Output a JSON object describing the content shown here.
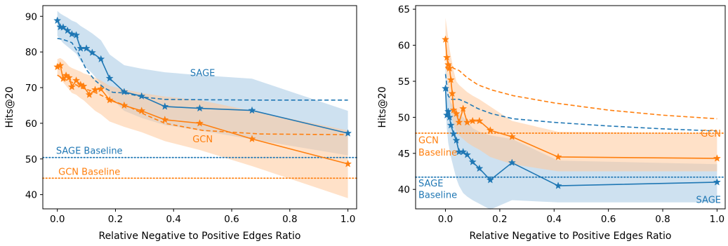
{
  "colors": {
    "sage": "#1f77b4",
    "gcn": "#ff7f0e",
    "sage_band": "#a6c8e4",
    "gcn_band": "#ffc99a"
  },
  "chart_data": [
    {
      "type": "line",
      "xlabel": "Relative Negative to Positive Edges Ratio",
      "ylabel": "Hits@20",
      "xlim": [
        -0.05,
        1.03
      ],
      "ylim": [
        36,
        93
      ],
      "xticks": [
        0.0,
        0.2,
        0.4,
        0.6,
        0.8,
        1.0
      ],
      "xtick_labels": [
        "0.0",
        "0.2",
        "0.4",
        "0.6",
        "0.8",
        "1.0"
      ],
      "yticks": [
        40,
        50,
        60,
        70,
        80,
        90
      ],
      "ytick_labels": [
        "40",
        "50",
        "60",
        "70",
        "80",
        "90"
      ],
      "grid": false,
      "annotations": [
        {
          "text": "SAGE",
          "x": 0.5,
          "y": 74,
          "series": "SAGE"
        },
        {
          "text": "GCN",
          "x": 0.5,
          "y": 55.5,
          "series": "GCN"
        },
        {
          "text": "SAGE Baseline",
          "x": 0.11,
          "y": 52.2,
          "series": "SAGE"
        },
        {
          "text": "GCN Baseline",
          "x": 0.11,
          "y": 46.3,
          "series": "GCN"
        }
      ],
      "baselines": [
        {
          "label": "SAGE Baseline",
          "y": 50.4,
          "series": "SAGE"
        },
        {
          "label": "GCN Baseline",
          "y": 44.6,
          "series": "GCN"
        }
      ],
      "series": [
        {
          "name": "SAGE",
          "x": [
            0.0,
            0.01,
            0.02,
            0.035,
            0.05,
            0.065,
            0.08,
            0.1,
            0.12,
            0.15,
            0.18,
            0.23,
            0.29,
            0.37,
            0.49,
            0.67,
            1.0
          ],
          "values": [
            88.8,
            87.0,
            86.9,
            86.0,
            85.0,
            84.7,
            81.0,
            81.0,
            79.8,
            78.0,
            72.6,
            68.8,
            67.6,
            64.7,
            64.2,
            63.6,
            57.2
          ],
          "band_lower": [
            84.5,
            83.5,
            82.5,
            81.5,
            80.5,
            79.5,
            77.5,
            75.5,
            74.0,
            71.0,
            67.5,
            63.5,
            61.5,
            59.5,
            58.0,
            55.5,
            51.0
          ],
          "band_upper": [
            91.5,
            90.8,
            90.3,
            89.6,
            88.8,
            88.3,
            87.3,
            86.3,
            85.2,
            83.3,
            79.3,
            76.3,
            75.3,
            74.3,
            73.5,
            72.5,
            63.5
          ],
          "dashed_x": [
            0.0,
            0.02,
            0.05,
            0.07,
            0.1,
            0.13,
            0.16,
            0.19,
            0.23,
            0.3,
            0.37,
            0.5,
            0.7,
            1.0
          ],
          "dashed_values": [
            83.8,
            83.5,
            82.6,
            80.0,
            75.0,
            72.0,
            70.0,
            68.7,
            68.5,
            67.3,
            66.7,
            66.6,
            66.5,
            66.5
          ]
        },
        {
          "name": "GCN",
          "x": [
            0.0,
            0.01,
            0.02,
            0.03,
            0.04,
            0.05,
            0.065,
            0.08,
            0.09,
            0.11,
            0.13,
            0.15,
            0.18,
            0.23,
            0.29,
            0.37,
            0.49,
            0.67,
            1.0
          ],
          "values": [
            75.8,
            76.2,
            72.5,
            73.4,
            72.8,
            70.2,
            72.0,
            70.8,
            70.4,
            68.0,
            69.4,
            69.6,
            66.5,
            65.0,
            63.5,
            61.0,
            60.0,
            55.6,
            48.6
          ],
          "band_lower": [
            73.5,
            73.0,
            71.5,
            70.5,
            69.5,
            68.5,
            68.0,
            67.0,
            66.5,
            65.0,
            63.5,
            62.5,
            60.5,
            59.0,
            57.5,
            55.0,
            52.5,
            48.0,
            39.0
          ],
          "band_upper": [
            78.0,
            78.3,
            77.8,
            77.0,
            76.0,
            75.5,
            75.0,
            74.5,
            74.0,
            73.5,
            72.8,
            72.0,
            70.5,
            69.5,
            68.5,
            67.5,
            66.5,
            63.5,
            58.0
          ],
          "dashed_x": [
            0.0,
            0.02,
            0.05,
            0.08,
            0.12,
            0.16,
            0.2,
            0.25,
            0.3,
            0.37,
            0.5,
            0.7,
            1.0
          ],
          "dashed_values": [
            73.5,
            72.5,
            71.5,
            70.0,
            69.0,
            67.5,
            66.0,
            64.5,
            62.5,
            60.0,
            58.0,
            57.0,
            56.8
          ]
        }
      ]
    },
    {
      "type": "line",
      "xlabel": "Relative Negative to Positive Edges Ratio",
      "ylabel": "Hits@20",
      "xlim": [
        -0.11,
        1.03
      ],
      "ylim": [
        37.3,
        65.5
      ],
      "xticks": [
        0.0,
        0.2,
        0.4,
        0.6,
        0.8,
        1.0
      ],
      "xtick_labels": [
        "0.0",
        "0.2",
        "0.4",
        "0.6",
        "0.8",
        "1.0"
      ],
      "yticks": [
        40,
        45,
        50,
        55,
        60,
        65
      ],
      "ytick_labels": [
        "40",
        "45",
        "50",
        "55",
        "60",
        "65"
      ],
      "grid": false,
      "annotations": [
        {
          "text": "GCN",
          "x": 0.97,
          "y": 47.7,
          "series": "GCN"
        },
        {
          "text": "GCN",
          "x": -0.1,
          "y": 46.8,
          "series": "GCN"
        },
        {
          "text": "Baseline",
          "x": -0.1,
          "y": 45.1,
          "series": "GCN"
        },
        {
          "text": "SAGE",
          "x": -0.1,
          "y": 40.8,
          "series": "SAGE"
        },
        {
          "text": "Baseline",
          "x": -0.1,
          "y": 39.2,
          "series": "SAGE"
        },
        {
          "text": "SAGE",
          "x": 0.97,
          "y": 38.5,
          "series": "SAGE"
        }
      ],
      "baselines": [
        {
          "label": "GCN Baseline",
          "y": 47.8,
          "series": "GCN"
        },
        {
          "label": "SAGE Baseline",
          "y": 41.7,
          "series": "SAGE"
        }
      ],
      "series": [
        {
          "name": "SAGE",
          "x": [
            0.0,
            0.005,
            0.01,
            0.015,
            0.02,
            0.03,
            0.04,
            0.05,
            0.065,
            0.08,
            0.1,
            0.125,
            0.165,
            0.245,
            0.415,
            1.0
          ],
          "values": [
            54.0,
            50.3,
            50.8,
            50.0,
            48.9,
            47.7,
            46.8,
            45.2,
            45.2,
            44.8,
            43.8,
            42.9,
            41.3,
            43.7,
            40.5,
            41.0
          ],
          "band_lower": [
            51.5,
            48.5,
            46.5,
            45.5,
            44.5,
            43.0,
            41.5,
            40.5,
            39.5,
            39.0,
            38.5,
            38.0,
            37.2,
            38.5,
            38.2,
            38.2
          ],
          "band_upper": [
            57.5,
            55.5,
            53.5,
            52.5,
            52.0,
            51.5,
            51.0,
            50.5,
            50.0,
            49.5,
            48.5,
            48.0,
            47.5,
            47.0,
            44.0,
            43.5
          ],
          "dashed_x": [
            0.0,
            0.01,
            0.02,
            0.05,
            0.08,
            0.12,
            0.17,
            0.25,
            0.4,
            0.6,
            0.8,
            1.0
          ],
          "dashed_values": [
            56.0,
            53.0,
            52.5,
            52.5,
            52.0,
            51.2,
            50.5,
            49.8,
            49.3,
            48.8,
            48.4,
            48.1
          ]
        },
        {
          "name": "GCN",
          "x": [
            0.0,
            0.005,
            0.01,
            0.015,
            0.02,
            0.025,
            0.03,
            0.04,
            0.05,
            0.065,
            0.08,
            0.1,
            0.125,
            0.165,
            0.245,
            0.415,
            1.0
          ],
          "values": [
            60.8,
            58.3,
            57.3,
            56.8,
            55.2,
            53.3,
            51.0,
            50.5,
            49.3,
            51.2,
            49.3,
            49.5,
            49.5,
            48.2,
            47.3,
            44.5,
            44.3
          ],
          "band_lower": [
            57.5,
            55.5,
            54.0,
            52.5,
            51.0,
            50.0,
            49.0,
            48.0,
            47.5,
            47.0,
            46.5,
            46.0,
            45.5,
            44.5,
            43.5,
            42.5,
            42.5
          ],
          "band_upper": [
            63.8,
            62.5,
            61.0,
            59.5,
            58.5,
            57.5,
            56.5,
            55.0,
            54.5,
            54.0,
            53.5,
            53.0,
            52.5,
            51.5,
            49.5,
            48.0,
            47.8
          ],
          "dashed_x": [
            0.0,
            0.01,
            0.02,
            0.03,
            0.05,
            0.08,
            0.12,
            0.17,
            0.25,
            0.4,
            0.6,
            0.8,
            1.0
          ],
          "dashed_values": [
            57.0,
            56.5,
            57.3,
            56.8,
            56.5,
            55.5,
            54.5,
            53.8,
            53.0,
            52.0,
            51.0,
            50.3,
            49.8
          ]
        }
      ]
    }
  ]
}
